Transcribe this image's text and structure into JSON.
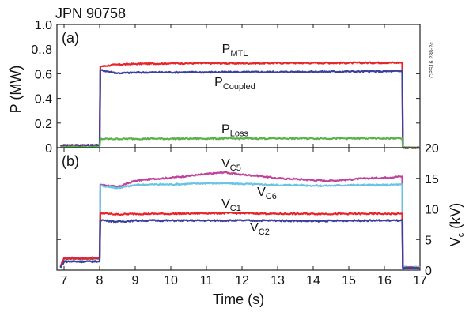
{
  "figure_title": "JPN 90758",
  "side_code": "CPS16.238-2c",
  "x_axis": {
    "label": "Time (s)",
    "ticks": [
      7,
      8,
      9,
      10,
      11,
      12,
      13,
      14,
      15,
      16,
      17
    ],
    "range": [
      6.8,
      17.0
    ]
  },
  "chart_data": [
    {
      "panel": "(a)",
      "type": "line",
      "ylabel": "P (MW)",
      "ylim": [
        0,
        1.0
      ],
      "y_ticks": [
        0,
        0.2,
        0.4,
        0.6,
        1.0
      ],
      "y_tick_labels": [
        "0",
        "0.2",
        "0.4",
        "0.6",
        "1.0"
      ],
      "y_tick_label_overlap": "0..8",
      "grid": false,
      "series": [
        {
          "name": "PMTL",
          "label_main": "P",
          "label_sub": "MTL",
          "color": "#e8232a",
          "x": [
            6.9,
            7.0,
            7.95,
            8.0,
            8.02,
            8.5,
            9.0,
            10.0,
            11.0,
            12.0,
            13.0,
            14.0,
            15.0,
            16.0,
            16.45,
            16.5,
            16.52,
            17.0
          ],
          "y": [
            0.01,
            0.02,
            0.02,
            0.02,
            0.66,
            0.675,
            0.68,
            0.685,
            0.685,
            0.685,
            0.687,
            0.688,
            0.688,
            0.69,
            0.69,
            0.69,
            0.0,
            0.0
          ]
        },
        {
          "name": "PCoupled",
          "label_main": "P",
          "label_sub": "Coupled",
          "color": "#3b3f9e",
          "x": [
            6.9,
            7.0,
            7.95,
            8.0,
            8.02,
            8.5,
            9.0,
            10.0,
            11.0,
            12.0,
            13.0,
            14.0,
            15.0,
            16.0,
            16.45,
            16.5,
            16.52,
            17.0
          ],
          "y": [
            0.01,
            0.02,
            0.02,
            0.02,
            0.63,
            0.605,
            0.61,
            0.612,
            0.613,
            0.614,
            0.615,
            0.617,
            0.618,
            0.62,
            0.62,
            0.62,
            0.0,
            0.0
          ]
        },
        {
          "name": "PLoss",
          "label_main": "P",
          "label_sub": "Loss",
          "color": "#5cb04a",
          "x": [
            6.9,
            7.0,
            7.95,
            8.0,
            8.02,
            9.0,
            10.0,
            11.0,
            12.0,
            13.0,
            14.0,
            15.0,
            16.0,
            16.45,
            16.5,
            16.52,
            17.0
          ],
          "y": [
            0.005,
            0.005,
            0.005,
            0.005,
            0.07,
            0.072,
            0.073,
            0.074,
            0.074,
            0.075,
            0.075,
            0.075,
            0.075,
            0.075,
            0.075,
            0.0,
            0.0
          ]
        }
      ],
      "annotations": [
        {
          "series": "PMTL",
          "x": 11.8,
          "y": 0.77
        },
        {
          "series": "PCoupled",
          "x": 11.8,
          "y": 0.5
        },
        {
          "series": "PLoss",
          "x": 11.8,
          "y": 0.12
        }
      ]
    },
    {
      "panel": "(b)",
      "type": "line",
      "ylabel": "V_c (kV)",
      "ylabel_main": "V",
      "ylabel_sub": "c",
      "ylabel_tail": " (kV)",
      "y_axis_side": "right",
      "ylim": [
        0,
        20
      ],
      "y_ticks": [
        0,
        5,
        10,
        15,
        20
      ],
      "y_tick_labels": [
        "0",
        "5",
        "10",
        "15",
        "20"
      ],
      "grid": false,
      "series": [
        {
          "name": "VC5",
          "label_main": "V",
          "label_sub": "C5",
          "color": "#c0449b",
          "x": [
            6.9,
            7.0,
            7.95,
            8.0,
            8.02,
            8.5,
            9.0,
            9.5,
            10.0,
            10.5,
            11.0,
            11.5,
            12.0,
            12.5,
            13.0,
            13.5,
            14.0,
            14.5,
            15.0,
            15.5,
            16.0,
            16.45,
            16.5,
            16.52,
            17.0
          ],
          "y": [
            0.5,
            2.0,
            2.0,
            2.0,
            14.0,
            13.6,
            14.6,
            14.9,
            15.1,
            15.4,
            15.7,
            16.0,
            15.6,
            15.4,
            15.0,
            14.9,
            14.7,
            14.6,
            14.8,
            15.0,
            15.1,
            15.3,
            15.3,
            0.5,
            0.5
          ]
        },
        {
          "name": "VC6",
          "label_main": "V",
          "label_sub": "C6",
          "color": "#69c3e3",
          "x": [
            6.9,
            7.0,
            7.95,
            8.0,
            8.02,
            8.5,
            9.0,
            9.5,
            10.0,
            10.5,
            11.0,
            11.5,
            12.0,
            12.5,
            13.0,
            13.5,
            14.0,
            14.5,
            15.0,
            15.5,
            16.0,
            16.45,
            16.5,
            16.52,
            17.0
          ],
          "y": [
            0.5,
            1.8,
            1.8,
            1.8,
            13.8,
            13.4,
            13.9,
            14.0,
            14.0,
            14.1,
            14.2,
            14.2,
            14.1,
            14.0,
            13.9,
            13.9,
            13.8,
            13.8,
            13.9,
            13.9,
            13.9,
            14.0,
            14.0,
            0.5,
            0.5
          ]
        },
        {
          "name": "VC1",
          "label_main": "V",
          "label_sub": "C1",
          "color": "#e8232a",
          "x": [
            6.9,
            7.0,
            7.95,
            8.0,
            8.02,
            8.5,
            9.0,
            10.0,
            11.0,
            12.0,
            13.0,
            14.0,
            15.0,
            16.0,
            16.45,
            16.5,
            16.52,
            17.0
          ],
          "y": [
            0.5,
            1.9,
            1.9,
            1.9,
            9.3,
            9.1,
            9.2,
            9.2,
            9.3,
            9.3,
            9.2,
            9.2,
            9.2,
            9.2,
            9.2,
            9.2,
            0.4,
            0.4
          ]
        },
        {
          "name": "VC2",
          "label_main": "V",
          "label_sub": "C2",
          "color": "#3b3f9e",
          "x": [
            6.9,
            7.0,
            7.95,
            8.0,
            8.02,
            8.5,
            9.0,
            10.0,
            11.0,
            12.0,
            13.0,
            14.0,
            15.0,
            16.0,
            16.45,
            16.5,
            16.52,
            17.0
          ],
          "y": [
            0.4,
            1.4,
            1.4,
            1.4,
            8.2,
            7.9,
            8.1,
            8.1,
            8.1,
            8.1,
            8.1,
            8.0,
            8.1,
            8.1,
            8.1,
            8.1,
            0.3,
            0.3
          ]
        }
      ],
      "annotations": [
        {
          "series": "VC5",
          "x": 11.7,
          "y": 16.8
        },
        {
          "series": "VC6",
          "x": 12.7,
          "y": 12.1
        },
        {
          "series": "VC1",
          "x": 11.7,
          "y": 10.2
        },
        {
          "series": "VC2",
          "x": 12.5,
          "y": 6.3
        }
      ]
    }
  ]
}
